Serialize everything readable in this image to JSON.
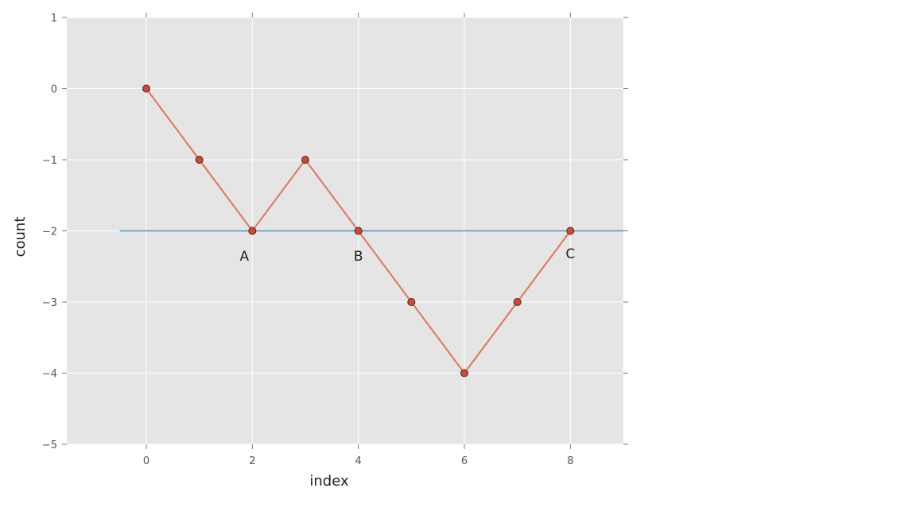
{
  "chart_data": {
    "type": "line",
    "title": "",
    "xlabel": "index",
    "ylabel": "count",
    "xlim": [
      -1.5,
      9
    ],
    "ylim": [
      -5,
      1
    ],
    "xticks": [
      0,
      2,
      4,
      6,
      8
    ],
    "yticks": [
      1,
      0,
      -1,
      -2,
      -3,
      -4,
      -5
    ],
    "xtick_labels": [
      "0",
      "2",
      "4",
      "6",
      "8"
    ],
    "ytick_labels": [
      "1",
      "0",
      "−1",
      "−2",
      "−3",
      "−4",
      "−5"
    ],
    "grid": true,
    "series": [
      {
        "x": [
          0,
          1,
          2,
          3,
          4,
          5,
          6,
          7,
          8
        ],
        "y": [
          0,
          -1,
          -2,
          -1,
          -2,
          -3,
          -4,
          -3,
          -2
        ],
        "color": "#e2745e",
        "marker_color": "#d9452f",
        "marker": "circle"
      }
    ],
    "reference_line": {
      "y": -2,
      "x_start": -0.5,
      "x_end": 9,
      "color": "#4a98c9"
    },
    "annotations": [
      {
        "text": "A",
        "x": 1.85,
        "y": -2.35
      },
      {
        "text": "B",
        "x": 4.0,
        "y": -2.35
      },
      {
        "text": "C",
        "x": 8.0,
        "y": -2.32
      }
    ],
    "colors": {
      "plot_background": "#e5e5e5",
      "grid": "#ffffff"
    }
  }
}
